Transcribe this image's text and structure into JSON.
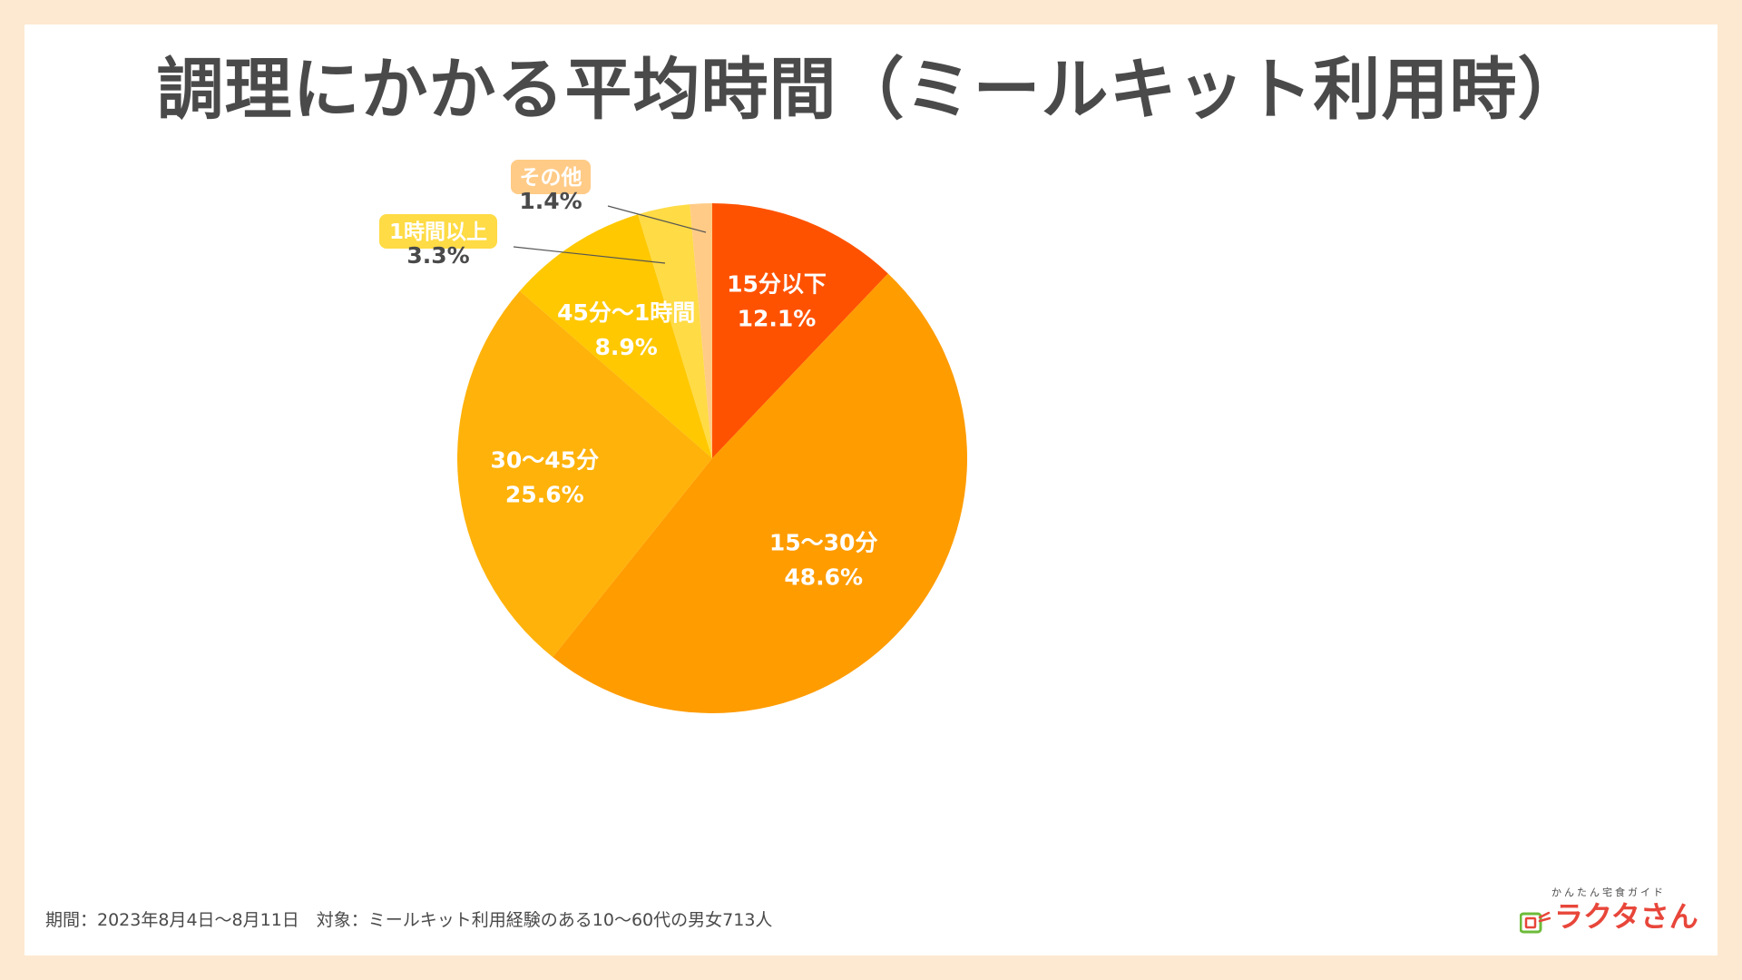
{
  "chart_data": {
    "type": "pie",
    "title": "調理にかかる平均時間（ミールキット利用時）",
    "start_angle": "12 o'clock",
    "direction": "clockwise",
    "slices": [
      {
        "label": "15分以下",
        "value": 12.1,
        "value_label": "12.1%",
        "color": "#ff5200",
        "label_style": "inside"
      },
      {
        "label": "15〜30分",
        "value": 48.6,
        "value_label": "48.6%",
        "color": "#ff9c00",
        "label_style": "inside"
      },
      {
        "label": "30〜45分",
        "value": 25.6,
        "value_label": "25.6%",
        "color": "#ffb20a",
        "label_style": "inside"
      },
      {
        "label": "45分〜1時間",
        "value": 8.9,
        "value_label": "8.9%",
        "color": "#ffc800",
        "label_style": "inside"
      },
      {
        "label": "1時間以上",
        "value": 3.3,
        "value_label": "3.3%",
        "color": "#ffdb45",
        "label_style": "callout"
      },
      {
        "label": "その他",
        "value": 1.4,
        "value_label": "1.4%",
        "color": "#ffcb87",
        "label_style": "callout"
      }
    ]
  },
  "footer": {
    "text": "期間：2023年8月4日〜8月11日　対象：ミールキット利用経験のある10〜60代の男女713人"
  },
  "logo": {
    "tagline": "かんたん宅食ガイド",
    "name": "ラクタさん"
  },
  "colors": {
    "background": "#fde9d1",
    "card": "#ffffff",
    "text": "#4a4a4a",
    "inside_label": "#ffffff",
    "logo_red": "#e8463a",
    "logo_green": "#6dbb3a"
  }
}
